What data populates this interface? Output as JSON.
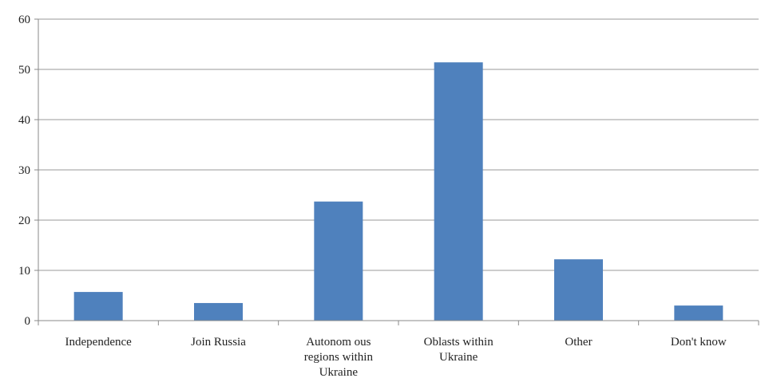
{
  "chart_data": {
    "type": "bar",
    "title": "",
    "xlabel": "",
    "ylabel": "",
    "categories": [
      "Independence",
      "Join Russia",
      "Autonom ous regions within Ukraine",
      "Oblasts within Ukraine",
      "Other",
      "Don't know"
    ],
    "category_label_lines": [
      [
        "Independence"
      ],
      [
        "Join Russia"
      ],
      [
        "Autonom ous",
        "regions within",
        "Ukraine"
      ],
      [
        "Oblasts within",
        "Ukraine"
      ],
      [
        "Other"
      ],
      [
        "Don't know"
      ]
    ],
    "values": [
      5.7,
      3.5,
      23.7,
      51.4,
      12.2,
      3.0
    ],
    "ylim": [
      0,
      60
    ],
    "yticks": [
      0,
      10,
      20,
      30,
      40,
      50,
      60
    ],
    "grid": true,
    "legend": "none",
    "bar_color": "#4f81bd",
    "grid_color": "#9a9a9a"
  }
}
